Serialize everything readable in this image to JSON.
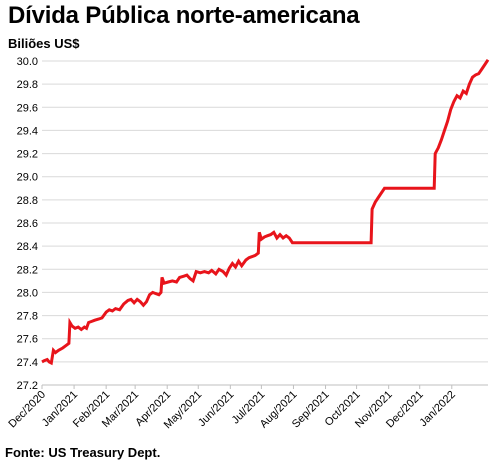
{
  "chart_data": {
    "type": "line",
    "title": "Dívida Pública norte-americana",
    "ylabel": "Biliões US$",
    "source": "Fonte: US Treasury Dept.",
    "ylim": [
      27.2,
      30.0
    ],
    "yticks": [
      27.2,
      27.4,
      27.6,
      27.8,
      28.0,
      28.2,
      28.4,
      28.6,
      28.8,
      29.0,
      29.2,
      29.4,
      29.6,
      29.8,
      30.0
    ],
    "ytick_labels": [
      "27.2",
      "27.4",
      "27.6",
      "27.8",
      "28.0",
      "28.2",
      "28.4",
      "28.6",
      "28.8",
      "29.0",
      "29.2",
      "29.4",
      "29.6",
      "29.8",
      "30.0"
    ],
    "xlim": [
      "2020-12-01",
      "2022-02-05"
    ],
    "xticks": [
      "2020-12-01",
      "2021-01-01",
      "2021-02-01",
      "2021-03-01",
      "2021-04-01",
      "2021-05-01",
      "2021-06-01",
      "2021-07-01",
      "2021-08-01",
      "2021-09-01",
      "2021-10-01",
      "2021-11-01",
      "2021-12-01",
      "2022-01-01"
    ],
    "xtick_labels": [
      "Dec/2020",
      "Jan/2021",
      "Feb/2021",
      "Mar/2021",
      "Apr/2021",
      "May/2021",
      "Jun/2021",
      "Jul/2021",
      "Aug/2021",
      "Sep/2021",
      "Oct/2021",
      "Nov/2021",
      "Dec/2021",
      "Jan/2022"
    ],
    "grid": "horizontal",
    "legend": "none",
    "series": [
      {
        "color": "#e8141b",
        "points": [
          [
            "2020-12-01",
            27.4
          ],
          [
            "2020-12-03",
            27.41
          ],
          [
            "2020-12-06",
            27.42
          ],
          [
            "2020-12-08",
            27.4
          ],
          [
            "2020-12-10",
            27.39
          ],
          [
            "2020-12-12",
            27.5
          ],
          [
            "2020-12-14",
            27.48
          ],
          [
            "2020-12-17",
            27.5
          ],
          [
            "2020-12-21",
            27.52
          ],
          [
            "2020-12-24",
            27.54
          ],
          [
            "2020-12-27",
            27.56
          ],
          [
            "2020-12-28",
            27.74
          ],
          [
            "2020-12-30",
            27.71
          ],
          [
            "2021-01-02",
            27.69
          ],
          [
            "2021-01-05",
            27.7
          ],
          [
            "2021-01-08",
            27.68
          ],
          [
            "2021-01-11",
            27.7
          ],
          [
            "2021-01-13",
            27.69
          ],
          [
            "2021-01-15",
            27.74
          ],
          [
            "2021-01-18",
            27.75
          ],
          [
            "2021-01-21",
            27.76
          ],
          [
            "2021-01-25",
            27.77
          ],
          [
            "2021-01-28",
            27.78
          ],
          [
            "2021-02-01",
            27.83
          ],
          [
            "2021-02-04",
            27.85
          ],
          [
            "2021-02-07",
            27.84
          ],
          [
            "2021-02-10",
            27.86
          ],
          [
            "2021-02-14",
            27.85
          ],
          [
            "2021-02-18",
            27.9
          ],
          [
            "2021-02-22",
            27.93
          ],
          [
            "2021-02-25",
            27.94
          ],
          [
            "2021-02-28",
            27.91
          ],
          [
            "2021-03-03",
            27.94
          ],
          [
            "2021-03-06",
            27.92
          ],
          [
            "2021-03-09",
            27.89
          ],
          [
            "2021-03-12",
            27.92
          ],
          [
            "2021-03-15",
            27.98
          ],
          [
            "2021-03-18",
            28.0
          ],
          [
            "2021-03-21",
            27.99
          ],
          [
            "2021-03-24",
            27.98
          ],
          [
            "2021-03-26",
            28.0
          ],
          [
            "2021-03-27",
            28.13
          ],
          [
            "2021-03-29",
            28.08
          ],
          [
            "2021-04-02",
            28.09
          ],
          [
            "2021-04-06",
            28.1
          ],
          [
            "2021-04-10",
            28.09
          ],
          [
            "2021-04-13",
            28.13
          ],
          [
            "2021-04-17",
            28.14
          ],
          [
            "2021-04-20",
            28.15
          ],
          [
            "2021-04-23",
            28.12
          ],
          [
            "2021-04-26",
            28.1
          ],
          [
            "2021-04-29",
            28.18
          ],
          [
            "2021-05-03",
            28.17
          ],
          [
            "2021-05-07",
            28.18
          ],
          [
            "2021-05-11",
            28.17
          ],
          [
            "2021-05-14",
            28.19
          ],
          [
            "2021-05-18",
            28.16
          ],
          [
            "2021-05-21",
            28.2
          ],
          [
            "2021-05-25",
            28.18
          ],
          [
            "2021-05-28",
            28.15
          ],
          [
            "2021-05-31",
            28.21
          ],
          [
            "2021-06-03",
            28.25
          ],
          [
            "2021-06-06",
            28.22
          ],
          [
            "2021-06-09",
            28.27
          ],
          [
            "2021-06-12",
            28.23
          ],
          [
            "2021-06-16",
            28.28
          ],
          [
            "2021-06-19",
            28.3
          ],
          [
            "2021-06-22",
            28.31
          ],
          [
            "2021-06-25",
            28.32
          ],
          [
            "2021-06-28",
            28.34
          ],
          [
            "2021-06-29",
            28.52
          ],
          [
            "2021-07-01",
            28.46
          ],
          [
            "2021-07-04",
            28.48
          ],
          [
            "2021-07-07",
            28.49
          ],
          [
            "2021-07-10",
            28.5
          ],
          [
            "2021-07-13",
            28.52
          ],
          [
            "2021-07-16",
            28.47
          ],
          [
            "2021-07-19",
            28.5
          ],
          [
            "2021-07-22",
            28.47
          ],
          [
            "2021-07-25",
            28.49
          ],
          [
            "2021-07-28",
            28.47
          ],
          [
            "2021-07-31",
            28.43
          ],
          [
            "2021-09-20",
            28.43
          ],
          [
            "2021-10-15",
            28.43
          ],
          [
            "2021-10-16",
            28.72
          ],
          [
            "2021-10-19",
            28.78
          ],
          [
            "2021-10-22",
            28.82
          ],
          [
            "2021-10-25",
            28.86
          ],
          [
            "2021-10-28",
            28.9
          ],
          [
            "2021-12-15",
            28.9
          ],
          [
            "2021-12-16",
            29.2
          ],
          [
            "2021-12-19",
            29.25
          ],
          [
            "2021-12-22",
            29.32
          ],
          [
            "2021-12-25",
            29.4
          ],
          [
            "2021-12-28",
            29.48
          ],
          [
            "2021-12-31",
            29.58
          ],
          [
            "2022-01-03",
            29.65
          ],
          [
            "2022-01-06",
            29.7
          ],
          [
            "2022-01-09",
            29.68
          ],
          [
            "2022-01-12",
            29.74
          ],
          [
            "2022-01-15",
            29.72
          ],
          [
            "2022-01-18",
            29.8
          ],
          [
            "2022-01-21",
            29.86
          ],
          [
            "2022-01-24",
            29.88
          ],
          [
            "2022-01-27",
            29.89
          ],
          [
            "2022-01-30",
            29.93
          ],
          [
            "2022-02-02",
            29.97
          ],
          [
            "2022-02-05",
            30.01
          ]
        ]
      }
    ]
  }
}
